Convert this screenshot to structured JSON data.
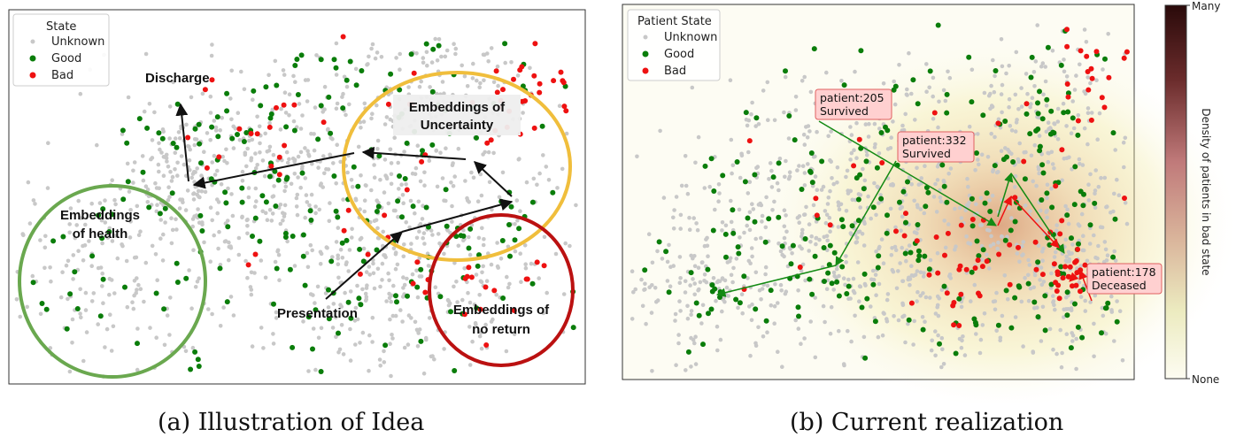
{
  "captions": {
    "a": "(a) Illustration of Idea",
    "b": "(b) Current realization"
  },
  "colors": {
    "unknown": "#c8c8c8",
    "good": "#0a7d0a",
    "bad": "#ee1111",
    "health_circle": "#6aa84f",
    "uncertainty_circle": "#f0be3c",
    "no_return_circle": "#bb1111",
    "arrow_a": "#111111",
    "arrow_b_good": "#138a13",
    "arrow_b_bad": "#ee1111",
    "callout_fill": "#ffd0d0",
    "callout_border": "#e06060"
  },
  "chart_data": [
    {
      "type": "scatter",
      "title": "",
      "legend": {
        "title": "State",
        "placement": "top-left",
        "entries": [
          "Unknown",
          "Good",
          "Bad"
        ]
      },
      "series": [
        {
          "name": "Unknown",
          "description": "dense cloud of unlabelled embeddings"
        },
        {
          "name": "Good",
          "description": "green points spread over the cloud"
        },
        {
          "name": "Bad",
          "description": "red points concentrated toward the right"
        }
      ],
      "annotations": [
        "Discharge",
        "Embeddings of Uncertainty",
        "Embeddings of health",
        "Embeddings of no return",
        "Presentation"
      ],
      "grid": false
    },
    {
      "type": "scatter",
      "title": "",
      "legend": {
        "title": "Patient State",
        "placement": "top-left",
        "entries": [
          "Unknown",
          "Good",
          "Bad"
        ]
      },
      "callouts": [
        {
          "patient": "patient:205",
          "outcome": "Survived"
        },
        {
          "patient": "patient:332",
          "outcome": "Survived"
        },
        {
          "patient": "patient:178",
          "outcome": "Deceased"
        }
      ],
      "colorbar": {
        "label": "Density of patients in bad state",
        "ticks": [
          "Many",
          "None"
        ]
      },
      "grid": false
    }
  ]
}
